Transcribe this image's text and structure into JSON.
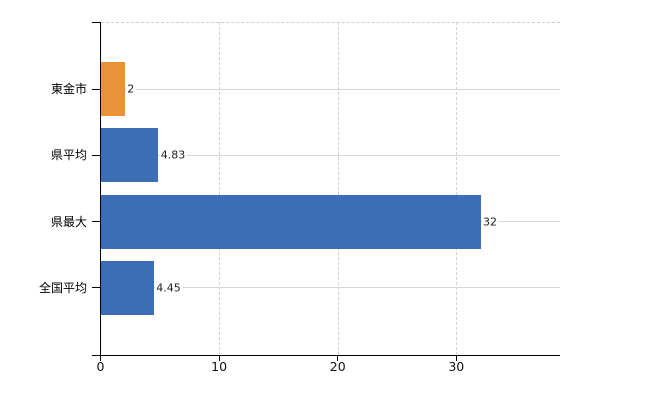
{
  "chart_data": {
    "type": "bar",
    "orientation": "horizontal",
    "title": "",
    "xlabel": "",
    "ylabel": "",
    "categories": [
      "東金市",
      "県平均",
      "県最大",
      "全国平均"
    ],
    "values": [
      2,
      4.83,
      32,
      4.45
    ],
    "value_labels": [
      "2",
      "4.83",
      "32",
      "4.45"
    ],
    "bar_colors": [
      "#EA913C",
      "#3B6EB5",
      "#3B6EB5",
      "#3B6EB5"
    ],
    "xticks": [
      0,
      10,
      20,
      30
    ],
    "xtick_labels": [
      "0",
      "10",
      "20",
      "30"
    ],
    "xlim": [
      0,
      38.7
    ],
    "grid": true,
    "legend": false,
    "gridline_style": {
      "vertical": "dashed",
      "row": "solid",
      "grid_color": "#d4d4d4",
      "axis_color": "#000000"
    }
  }
}
